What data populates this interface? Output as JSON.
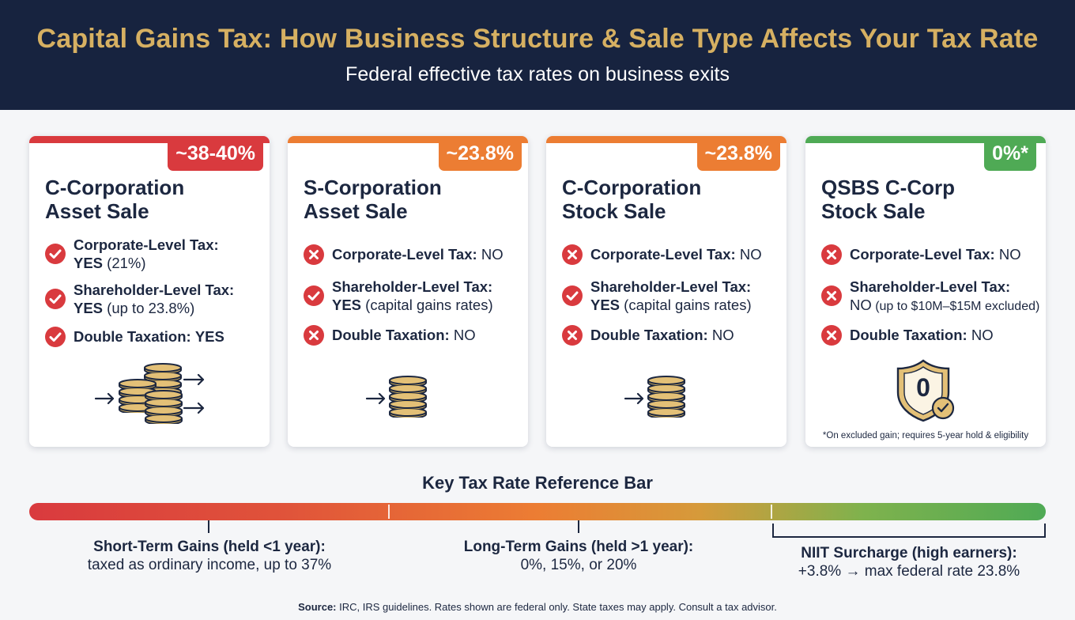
{
  "header": {
    "title": "Capital Gains Tax: How Business Structure & Sale Type Affects Your Tax Rate",
    "subtitle": "Federal effective tax rates on business exits"
  },
  "colors": {
    "red": "#d93a3e",
    "orange": "#ec7d33",
    "green": "#4faa55",
    "navy": "#17233f",
    "gold": "#d6b062"
  },
  "cards": [
    {
      "badge": "~38-40%",
      "title_line1": "C-Corporation",
      "title_line2": "Asset Sale",
      "rows": [
        {
          "icon": "check-icon",
          "label": "Corporate-Level Tax:",
          "value_bold": "YES",
          "value": " (21%)"
        },
        {
          "icon": "check-icon",
          "label": "Shareholder-Level Tax:",
          "value_bold": "YES",
          "value": " (up to 23.8%)"
        },
        {
          "icon": "check-icon",
          "label": "Double Taxation:",
          "value_bold": "YES",
          "value": ""
        }
      ],
      "illustration": "two-coin-stacks-icon"
    },
    {
      "badge": "~23.8%",
      "title_line1": "S-Corporation",
      "title_line2": "Asset Sale",
      "rows": [
        {
          "icon": "x-icon",
          "label": "Corporate-Level Tax:",
          "value": "NO"
        },
        {
          "icon": "check-icon",
          "label": "Shareholder-Level Tax:",
          "value_bold": "YES",
          "value": " (capital gains rates)"
        },
        {
          "icon": "x-icon",
          "label": "Double Taxation:",
          "value": "NO"
        }
      ],
      "illustration": "coin-stack-icon"
    },
    {
      "badge": "~23.8%",
      "title_line1": "C-Corporation",
      "title_line2": "Stock Sale",
      "rows": [
        {
          "icon": "x-icon",
          "label": "Corporate-Level Tax:",
          "value": "NO"
        },
        {
          "icon": "check-icon",
          "label": "Shareholder-Level Tax:",
          "value_bold": "YES",
          "value": " (capital gains rates)"
        },
        {
          "icon": "x-icon",
          "label": "Double Taxation:",
          "value": "NO"
        }
      ],
      "illustration": "coin-stack-icon"
    },
    {
      "badge": "0%*",
      "title_line1": "QSBS C-Corp",
      "title_line2": "Stock Sale",
      "rows": [
        {
          "icon": "x-icon",
          "label": "Corporate-Level Tax:",
          "value": "NO"
        },
        {
          "icon": "x-icon",
          "label": "Shareholder-Level Tax:",
          "value_prefix": "NO",
          "value_small": " (up to $10M–$15M excluded)"
        },
        {
          "icon": "x-icon",
          "label": "Double Taxation:",
          "value": "NO"
        }
      ],
      "illustration": "shield-zero-icon",
      "shield_text": "0",
      "footnote": "*On excluded gain; requires 5-year hold & eligibility"
    }
  ],
  "reference": {
    "title": "Key Tax Rate Reference Bar",
    "short_term": {
      "label": "Short-Term Gains (held <1 year):",
      "desc": "taxed as ordinary income, up to 37%"
    },
    "long_term": {
      "label": "Long-Term Gains (held >1 year):",
      "desc": "0%, 15%, or 20%"
    },
    "niit": {
      "label": "NIIT Surcharge (high earners):",
      "desc": "+3.8% → max federal rate 23.8%"
    }
  },
  "source": {
    "label": "Source:",
    "text": " IRC, IRS guidelines. Rates shown are federal only. State taxes may apply. Consult a tax advisor."
  }
}
